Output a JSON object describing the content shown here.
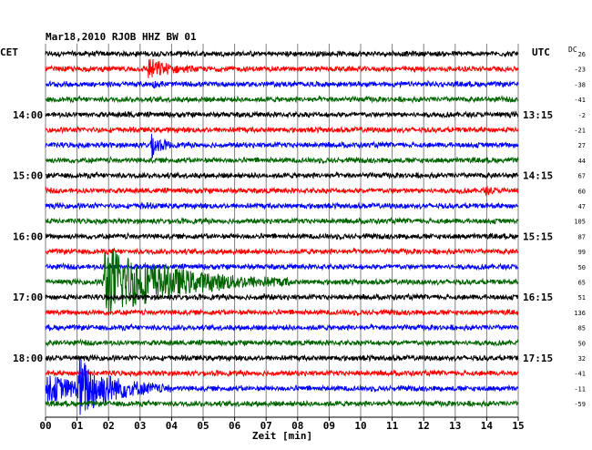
{
  "title": "Mar18,2010  RJOB HHZ BW 01",
  "left_timezone": "CET",
  "right_timezone": "UTC",
  "dc_label": "DC",
  "colors": {
    "black": "#000000",
    "red": "#ff0000",
    "blue": "#0000ff",
    "green": "#006400",
    "grid": "#808080"
  },
  "chart_data": {
    "type": "line",
    "title": "Mar18,2010  RJOB HHZ BW 01",
    "xlabel": "Zeit [min]",
    "xlim": [
      0,
      15
    ],
    "x_ticks": [
      "00",
      "01",
      "02",
      "03",
      "04",
      "05",
      "06",
      "07",
      "08",
      "09",
      "10",
      "11",
      "12",
      "13",
      "14",
      "15"
    ],
    "trace_minutes": 15,
    "color_cycle": [
      "black",
      "red",
      "blue",
      "green"
    ],
    "left_hour_labels": [
      {
        "row": 4,
        "label": "14:00"
      },
      {
        "row": 8,
        "label": "15:00"
      },
      {
        "row": 12,
        "label": "16:00"
      },
      {
        "row": 16,
        "label": "17:00"
      },
      {
        "row": 20,
        "label": "18:00"
      }
    ],
    "right_hour_labels": [
      {
        "row": 4,
        "label": "13:15"
      },
      {
        "row": 8,
        "label": "14:15"
      },
      {
        "row": 12,
        "label": "15:15"
      },
      {
        "row": 16,
        "label": "16:15"
      },
      {
        "row": 20,
        "label": "17:15"
      }
    ],
    "dc_offsets": [
      "26",
      "-23",
      "-38",
      "-41",
      "-2",
      "-21",
      "27",
      "44",
      "67",
      "60",
      "47",
      "105",
      "87",
      "99",
      "50",
      "65",
      "51",
      "136",
      "85",
      "50",
      "32",
      "-41",
      "-11",
      "-59"
    ],
    "events": [
      {
        "row": 1,
        "start_min": 3.2,
        "peak": 1.6,
        "duration_min": 1.5
      },
      {
        "row": 2,
        "start_min": 3.35,
        "peak": 0.35,
        "duration_min": 0.6
      },
      {
        "row": 4,
        "start_min": 2.5,
        "peak": 0.3,
        "duration_min": 0.5
      },
      {
        "row": 6,
        "start_min": 3.3,
        "peak": 1.9,
        "duration_min": 0.8
      },
      {
        "row": 9,
        "start_min": 13.9,
        "peak": 0.4,
        "duration_min": 0.8
      },
      {
        "row": 10,
        "start_min": 3.0,
        "peak": 0.3,
        "duration_min": 0.5
      },
      {
        "row": 15,
        "start_min": 1.8,
        "peak": 5.0,
        "duration_min": 6.0
      },
      {
        "row": 16,
        "start_min": 6.8,
        "peak": 0.3,
        "duration_min": 0.5
      },
      {
        "row": 22,
        "start_min": 0.0,
        "peak": 1.8,
        "duration_min": 3.5
      },
      {
        "row": 22,
        "start_min": 1.0,
        "peak": 3.5,
        "duration_min": 3.0
      }
    ]
  }
}
